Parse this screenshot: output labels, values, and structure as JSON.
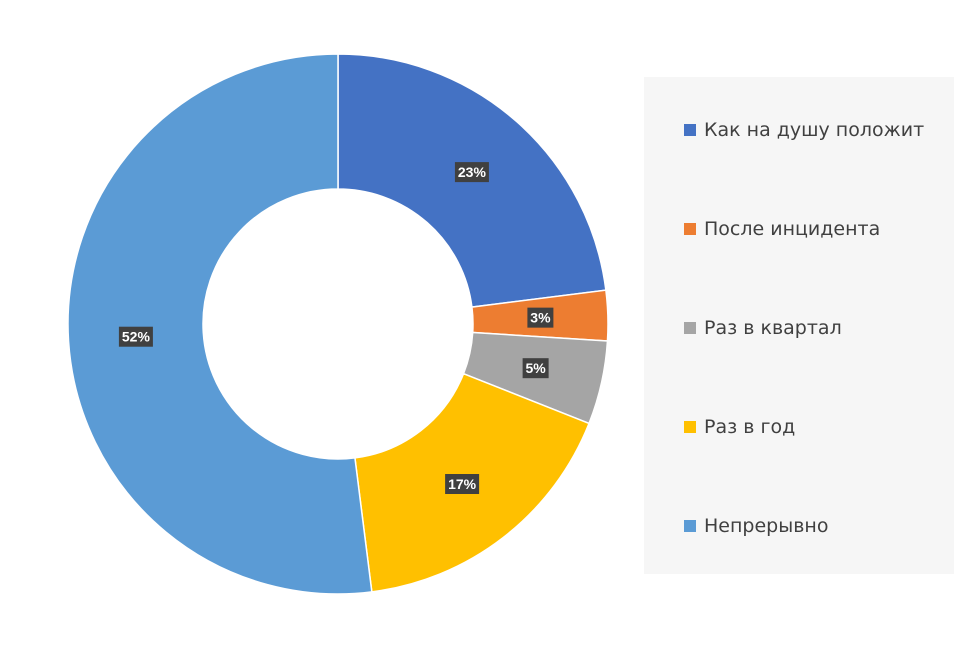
{
  "chart_data": {
    "type": "pie",
    "donut": true,
    "categories": [
      "Как на душу положит",
      "После инцидента",
      "Раз в квартал",
      "Раз в год",
      "Непрерывно"
    ],
    "values": [
      23,
      3,
      5,
      17,
      52
    ],
    "labels": [
      "23%",
      "3%",
      "5%",
      "17%",
      "52%"
    ],
    "colors": [
      "#4472C4",
      "#ED7D31",
      "#A5A5A5",
      "#FFC000",
      "#5B9BD5"
    ],
    "legend_position": "right"
  }
}
